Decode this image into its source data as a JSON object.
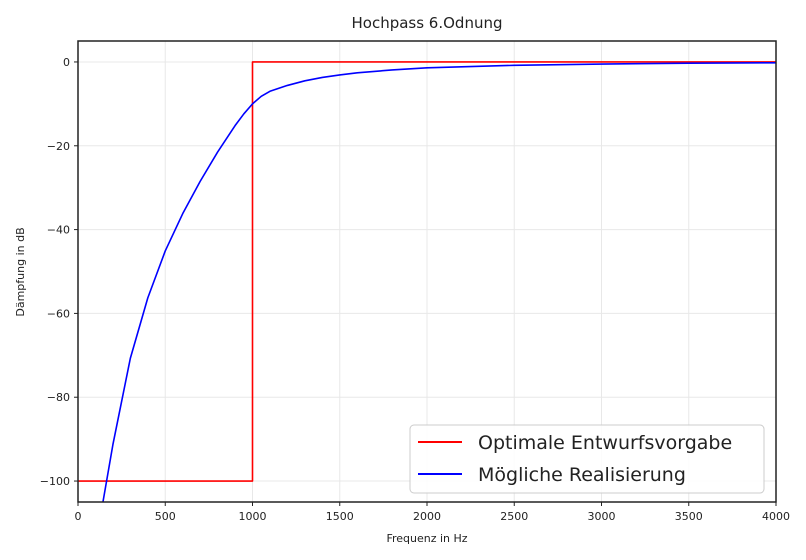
{
  "chart_data": {
    "type": "line",
    "title": "Hochpass 6.Odnung",
    "xlabel": "Frequenz in Hz",
    "ylabel": "Dämpfung in dB",
    "xlim": [
      0,
      4000
    ],
    "ylim": [
      -105,
      5
    ],
    "x_ticks": [
      0,
      500,
      1000,
      1500,
      2000,
      2500,
      3000,
      3500,
      4000
    ],
    "y_ticks": [
      0,
      -20,
      -40,
      -60,
      -80,
      -100
    ],
    "y_tick_labels": [
      "0",
      "−20",
      "−40",
      "−60",
      "−80",
      "−100"
    ],
    "grid": true,
    "legend_position": "lower-right",
    "series": [
      {
        "name": "Optimale Entwurfsvorgabe",
        "color": "#ff0000",
        "x": [
          0,
          1000,
          1000,
          4000
        ],
        "y": [
          -100,
          -100,
          0,
          0
        ]
      },
      {
        "name": "Mögliche Realisierung",
        "color": "#0000ff",
        "x": [
          143,
          200,
          300,
          400,
          500,
          600,
          700,
          800,
          900,
          950,
          1000,
          1050,
          1100,
          1200,
          1300,
          1400,
          1500,
          1600,
          1800,
          2000,
          2500,
          3000,
          3500,
          4000
        ],
        "y": [
          -105,
          -91.3,
          -70.7,
          -56.3,
          -45.1,
          -36.2,
          -28.5,
          -21.5,
          -15.2,
          -12.4,
          -10.0,
          -8.2,
          -7.0,
          -5.6,
          -4.5,
          -3.7,
          -3.1,
          -2.6,
          -1.9,
          -1.4,
          -0.8,
          -0.5,
          -0.3,
          -0.2
        ]
      }
    ]
  }
}
